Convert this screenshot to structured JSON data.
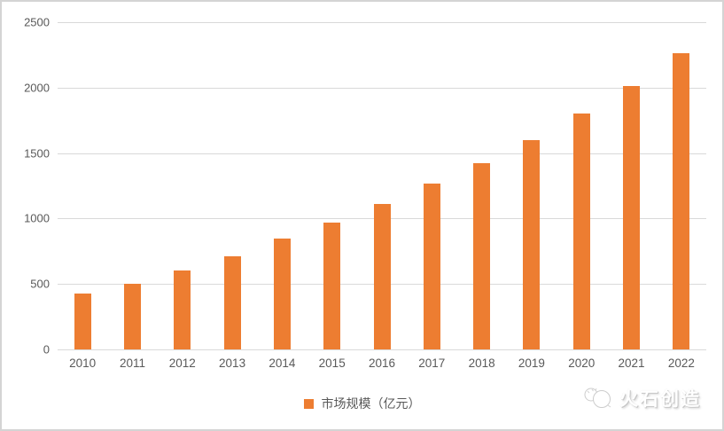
{
  "chart_data": {
    "type": "bar",
    "title": "",
    "categories": [
      "2010",
      "2011",
      "2012",
      "2013",
      "2014",
      "2015",
      "2016",
      "2017",
      "2018",
      "2019",
      "2020",
      "2021",
      "2022"
    ],
    "values": [
      430,
      500,
      600,
      710,
      850,
      970,
      1110,
      1270,
      1420,
      1600,
      1800,
      2015,
      2260
    ],
    "series_name": "市场规模（亿元）",
    "xlabel": "",
    "ylabel": "",
    "ylim": [
      0,
      2500
    ],
    "yticks": [
      0,
      500,
      1000,
      1500,
      2000,
      2500
    ],
    "grid": true,
    "legend_position": "bottom-center",
    "bar_color": "#ED7D31"
  },
  "legend": {
    "label": "市场规模（亿元）"
  },
  "logo": {
    "text": "火石创造",
    "icon": "flint-stones-icon"
  },
  "colors": {
    "bar": "#ED7D31",
    "gridline": "#d9d9d9",
    "tick_text": "#595959",
    "frame_border": "#d4d4d4"
  }
}
